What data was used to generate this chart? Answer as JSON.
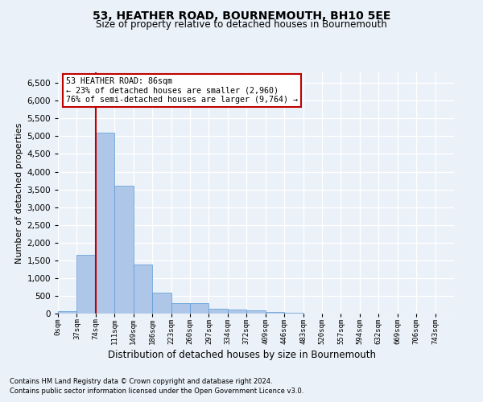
{
  "title": "53, HEATHER ROAD, BOURNEMOUTH, BH10 5EE",
  "subtitle": "Size of property relative to detached houses in Bournemouth",
  "xlabel": "Distribution of detached houses by size in Bournemouth",
  "ylabel": "Number of detached properties",
  "footer_line1": "Contains HM Land Registry data © Crown copyright and database right 2024.",
  "footer_line2": "Contains public sector information licensed under the Open Government Licence v3.0.",
  "bin_labels": [
    "0sqm",
    "37sqm",
    "74sqm",
    "111sqm",
    "149sqm",
    "186sqm",
    "223sqm",
    "260sqm",
    "297sqm",
    "334sqm",
    "372sqm",
    "409sqm",
    "446sqm",
    "483sqm",
    "520sqm",
    "557sqm",
    "594sqm",
    "632sqm",
    "669sqm",
    "706sqm",
    "743sqm"
  ],
  "bar_values": [
    70,
    1650,
    5100,
    3600,
    1390,
    600,
    290,
    290,
    145,
    115,
    90,
    50,
    30,
    0,
    0,
    0,
    0,
    0,
    0,
    0,
    0
  ],
  "bar_color": "#aec6e8",
  "bar_edge_color": "#5b9bd5",
  "vline_x": 2.0,
  "vline_color": "#c00000",
  "ylim": [
    0,
    6800
  ],
  "yticks": [
    0,
    500,
    1000,
    1500,
    2000,
    2500,
    3000,
    3500,
    4000,
    4500,
    5000,
    5500,
    6000,
    6500
  ],
  "annotation_text": "53 HEATHER ROAD: 86sqm\n← 23% of detached houses are smaller (2,960)\n76% of semi-detached houses are larger (9,764) →",
  "annotation_box_color": "#ffffff",
  "annotation_box_edge": "#c00000",
  "bg_color": "#eaf1f8",
  "plot_bg_color": "#eaf1f8",
  "grid_color": "#ffffff",
  "title_fontsize": 10,
  "subtitle_fontsize": 8.5,
  "xlabel_fontsize": 8.5,
  "ylabel_fontsize": 8
}
